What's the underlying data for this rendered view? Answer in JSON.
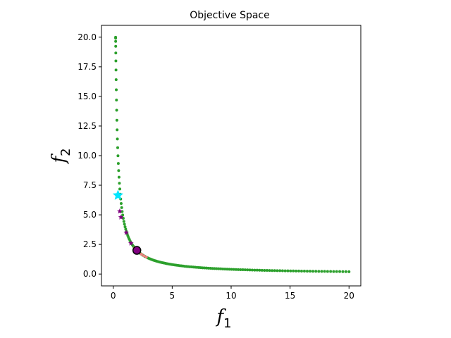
{
  "chart_data": {
    "type": "scatter",
    "title": "Objective Space",
    "xlabel": {
      "base": "f",
      "sub": "1"
    },
    "ylabel": {
      "base": "f",
      "sub": "2"
    },
    "xlim": [
      -1,
      21
    ],
    "ylim": [
      -1,
      21
    ],
    "xticks": [
      0,
      5,
      10,
      15,
      20
    ],
    "xtick_labels": [
      "0",
      "5",
      "10",
      "15",
      "20"
    ],
    "yticks": [
      0.0,
      2.5,
      5.0,
      7.5,
      10.0,
      12.5,
      15.0,
      17.5,
      20.0
    ],
    "ytick_labels": [
      "0.0",
      "2.5",
      "5.0",
      "7.5",
      "10.0",
      "12.5",
      "15.0",
      "17.5",
      "20.0"
    ],
    "grid": false,
    "series": [
      {
        "marker": "dot",
        "color": "#2ca02c",
        "curve": "x*y=4",
        "x_range": [
          0.2,
          20
        ]
      },
      {
        "marker": "dot",
        "color": "#f08080",
        "points": [
          [
            1.8,
            2.2
          ],
          [
            2.0,
            2.0
          ],
          [
            2.2,
            1.8
          ],
          [
            2.4,
            1.67
          ],
          [
            2.6,
            1.54
          ],
          [
            2.8,
            1.43
          ]
        ]
      },
      {
        "marker": "star",
        "color": "#800080",
        "points": [
          [
            0.55,
            5.3
          ],
          [
            0.65,
            4.8
          ],
          [
            1.1,
            3.5
          ],
          [
            1.5,
            2.6
          ]
        ]
      },
      {
        "marker": "star",
        "color": "#00e5ff",
        "points": [
          [
            0.4,
            6.65
          ]
        ]
      },
      {
        "marker": "circle",
        "color": "#800080",
        "edgecolor": "#000000",
        "points": [
          [
            2.0,
            2.0
          ]
        ]
      }
    ]
  }
}
